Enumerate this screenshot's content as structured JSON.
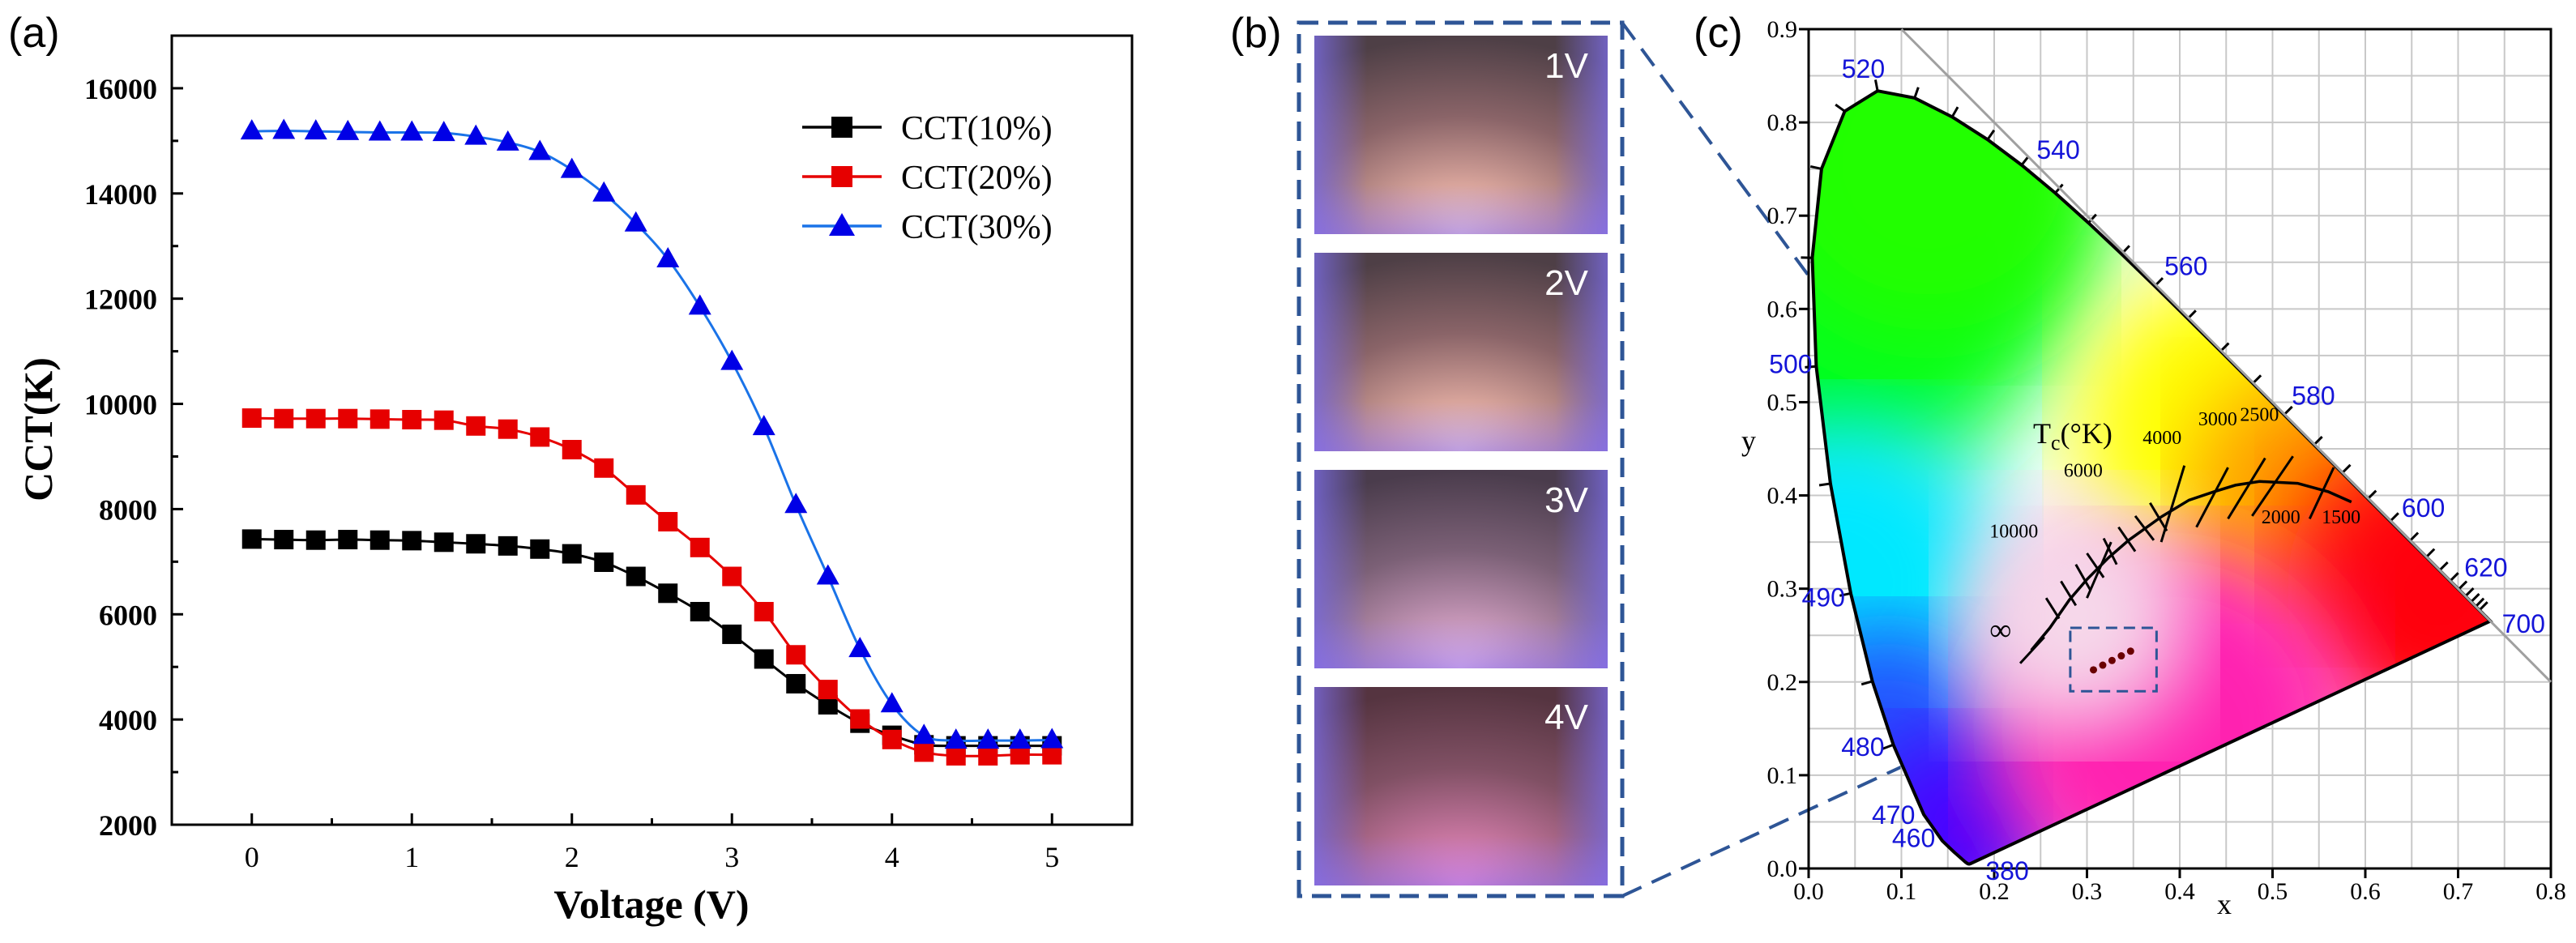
{
  "chart_data": [
    {
      "type": "line",
      "panel_label": "(a)",
      "title": "",
      "xlabel": "Voltage (V)",
      "ylabel": "CCT(K)",
      "xlim": [
        -0.5,
        5.5
      ],
      "ylim": [
        2000,
        17000
      ],
      "xticks": [
        0,
        1,
        2,
        3,
        4,
        5
      ],
      "yticks": [
        2000,
        4000,
        6000,
        8000,
        10000,
        12000,
        14000,
        16000
      ],
      "legend_position": "top-right",
      "x": [
        0,
        0.2,
        0.4,
        0.6,
        0.8,
        1.0,
        1.2,
        1.4,
        1.6,
        1.8,
        2.0,
        2.2,
        2.4,
        2.6,
        2.8,
        3.0,
        3.2,
        3.4,
        3.6,
        3.8,
        4.0,
        4.2,
        4.4,
        4.6,
        4.8,
        5.0
      ],
      "series": [
        {
          "name": "CCT(10%)",
          "color": "#000000",
          "marker": "square",
          "values": [
            7430,
            7420,
            7410,
            7420,
            7410,
            7400,
            7370,
            7340,
            7300,
            7240,
            7150,
            6990,
            6720,
            6400,
            6050,
            5620,
            5150,
            4680,
            4280,
            3930,
            3700,
            3520,
            3500,
            3500,
            3500,
            3500
          ]
        },
        {
          "name": "CCT(20%)",
          "color": "#e60000",
          "marker": "square",
          "values": [
            9730,
            9720,
            9720,
            9720,
            9710,
            9700,
            9690,
            9580,
            9520,
            9370,
            9130,
            8780,
            8270,
            7760,
            7270,
            6720,
            6050,
            5230,
            4570,
            4010,
            3620,
            3380,
            3310,
            3310,
            3330,
            3330
          ]
        },
        {
          "name": "CCT(30%)",
          "color": "#0000e6",
          "marker": "triangle",
          "values": [
            15180,
            15190,
            15180,
            15170,
            15160,
            15160,
            15150,
            15080,
            14970,
            14790,
            14450,
            14000,
            13430,
            12750,
            11850,
            10800,
            9560,
            8080,
            6720,
            5340,
            4290,
            3690,
            3600,
            3600,
            3600,
            3610
          ]
        }
      ]
    },
    {
      "type": "scatter",
      "panel_label": "(c)",
      "title": "",
      "xlabel": "x",
      "ylabel": "y",
      "xlim": [
        0.0,
        0.8
      ],
      "ylim": [
        0.0,
        0.9
      ],
      "xticks": [
        "0.0",
        "0.1",
        "0.2",
        "0.3",
        "0.4",
        "0.5",
        "0.6",
        "0.7",
        "0.8"
      ],
      "yticks": [
        "0.0",
        "0.1",
        "0.2",
        "0.3",
        "0.4",
        "0.5",
        "0.6",
        "0.7",
        "0.8",
        "0.9"
      ],
      "grid": true,
      "wavelength_labels": [
        {
          "nm": "380",
          "x": 0.175,
          "y": 0.005
        },
        {
          "nm": "460",
          "x": 0.144,
          "y": 0.03
        },
        {
          "nm": "470",
          "x": 0.124,
          "y": 0.058
        },
        {
          "nm": "480",
          "x": 0.091,
          "y": 0.133
        },
        {
          "nm": "490",
          "x": 0.045,
          "y": 0.295
        },
        {
          "nm": "500",
          "x": 0.008,
          "y": 0.538
        },
        {
          "nm": "520",
          "x": 0.074,
          "y": 0.834
        },
        {
          "nm": "540",
          "x": 0.23,
          "y": 0.754
        },
        {
          "nm": "560",
          "x": 0.373,
          "y": 0.624
        },
        {
          "nm": "580",
          "x": 0.512,
          "y": 0.487
        },
        {
          "nm": "600",
          "x": 0.627,
          "y": 0.372
        },
        {
          "nm": "620",
          "x": 0.691,
          "y": 0.308
        },
        {
          "nm": "700",
          "x": 0.735,
          "y": 0.265
        }
      ],
      "planckian_label": "Tc(°K)",
      "cct_labels": [
        "10000",
        "6000",
        "4000",
        "3000",
        "2500",
        "2000",
        "1500",
        "∞"
      ],
      "measured_points": {
        "x": [
          0.307,
          0.317,
          0.327,
          0.337,
          0.347
        ],
        "y": [
          0.213,
          0.218,
          0.223,
          0.228,
          0.233
        ]
      }
    }
  ],
  "photos": {
    "panel_label": "(b)",
    "labels": [
      "1V",
      "2V",
      "3V",
      "4V"
    ]
  }
}
